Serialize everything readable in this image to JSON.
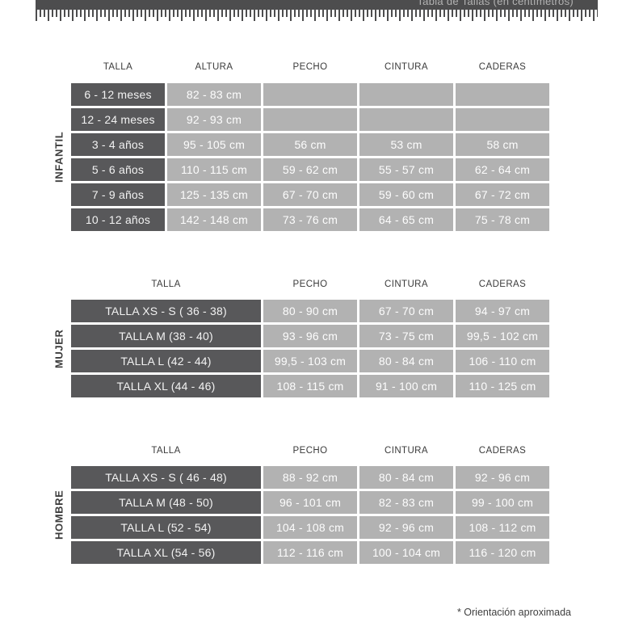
{
  "header": {
    "title": "Tabla de Tallas (en centímetros)"
  },
  "colors": {
    "bar": "#4d4d4e",
    "dark_cell": "#58585a",
    "light_cell": "#b2b2b2",
    "header_text": "#3b3b3b"
  },
  "tables": [
    {
      "group": "INFANTIL",
      "columns": [
        "TALLA",
        "ALTURA",
        "PECHO",
        "CINTURA",
        "CADERAS"
      ],
      "rows": [
        [
          "6 - 12 meses",
          "82 - 83 cm",
          "",
          "",
          ""
        ],
        [
          "12 - 24 meses",
          "92 - 93 cm",
          "",
          "",
          ""
        ],
        [
          "3 - 4 años",
          "95 - 105 cm",
          "56 cm",
          "53 cm",
          "58 cm"
        ],
        [
          "5 - 6 años",
          "110 - 115 cm",
          "59 - 62 cm",
          "55 - 57 cm",
          "62 - 64 cm"
        ],
        [
          "7 - 9 años",
          "125 - 135 cm",
          "67 - 70 cm",
          "59 - 60 cm",
          "67 - 72 cm"
        ],
        [
          "10 - 12 años",
          "142 - 148 cm",
          "73 - 76 cm",
          "64 - 65 cm",
          "75 - 78 cm"
        ]
      ]
    },
    {
      "group": "MUJER",
      "columns": [
        "TALLA",
        "PECHO",
        "CINTURA",
        "CADERAS"
      ],
      "rows": [
        [
          "TALLA XS - S ( 36 - 38)",
          "80 - 90 cm",
          "67 - 70 cm",
          "94 - 97 cm"
        ],
        [
          "TALLA M (38 - 40)",
          "93 - 96 cm",
          "73 - 75 cm",
          "99,5 - 102 cm"
        ],
        [
          "TALLA L (42 - 44)",
          "99,5 - 103 cm",
          "80 - 84 cm",
          "106 - 110 cm"
        ],
        [
          "TALLA XL (44 - 46)",
          "108 - 115 cm",
          "91 - 100 cm",
          "110 - 125 cm"
        ]
      ]
    },
    {
      "group": "HOMBRE",
      "columns": [
        "TALLA",
        "PECHO",
        "CINTURA",
        "CADERAS"
      ],
      "rows": [
        [
          "TALLA XS - S ( 46 - 48)",
          "88 - 92 cm",
          "80 - 84 cm",
          "92 - 96 cm"
        ],
        [
          "TALLA M (48 - 50)",
          "96 - 101 cm",
          "82 - 83 cm",
          "99 - 100 cm"
        ],
        [
          "TALLA L (52 - 54)",
          "104 - 108 cm",
          "92 - 96 cm",
          "108 - 112 cm"
        ],
        [
          "TALLA XL (54 - 56)",
          "112 - 116 cm",
          "100 - 104 cm",
          "116 - 120 cm"
        ]
      ]
    }
  ],
  "footer": {
    "note": "* Orientación aproximada"
  }
}
